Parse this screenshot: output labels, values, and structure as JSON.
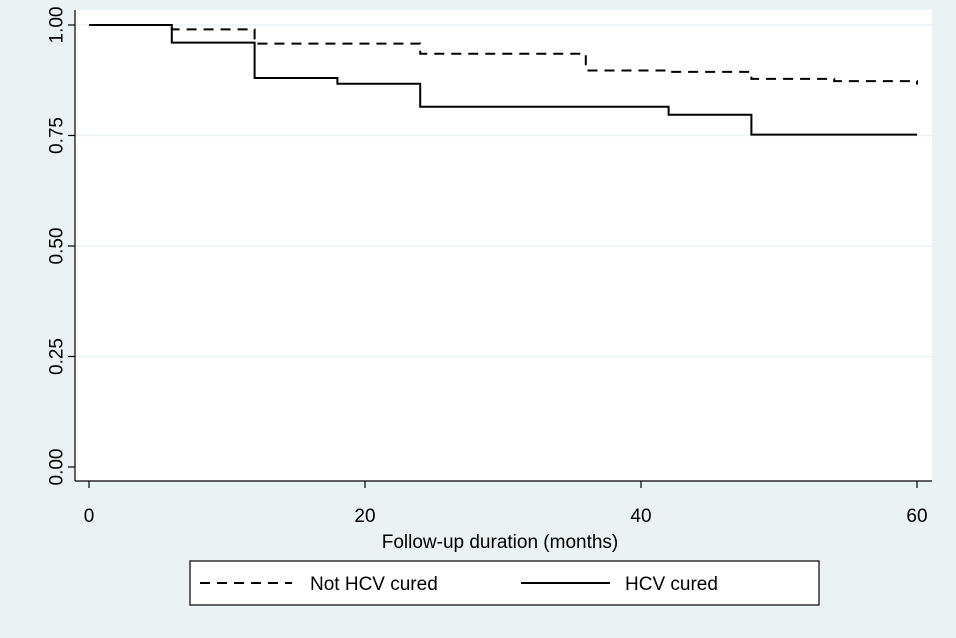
{
  "chart_data": {
    "type": "line",
    "title": "",
    "xlabel": "Follow-up duration (months)",
    "ylabel": "",
    "xlim": [
      0,
      60
    ],
    "ylim": [
      0,
      1
    ],
    "x_ticks": [
      0,
      20,
      40,
      60
    ],
    "x_tick_labels": [
      "0",
      "20",
      "40",
      "60"
    ],
    "y_ticks": [
      0,
      0.25,
      0.5,
      0.75,
      1
    ],
    "y_tick_labels": [
      "0.00",
      "0.25",
      "0.50",
      "0.75",
      "1.00"
    ],
    "grid": "horizontal",
    "legend_position": "bottom",
    "series": [
      {
        "name": "Not HCV cured",
        "line_style": "dashed",
        "color": "#000000",
        "x": [
          0,
          6,
          12,
          24,
          36,
          42,
          48,
          54,
          60
        ],
        "y": [
          1.0,
          0.99,
          0.958,
          0.935,
          0.897,
          0.894,
          0.878,
          0.873,
          0.865
        ]
      },
      {
        "name": "HCV cured",
        "line_style": "solid",
        "color": "#000000",
        "x": [
          0,
          6,
          12,
          18,
          24,
          42,
          48,
          60
        ],
        "y": [
          1.0,
          0.96,
          0.88,
          0.867,
          0.815,
          0.797,
          0.752,
          0.752
        ]
      }
    ]
  },
  "colors": {
    "background": "#eaf2f3",
    "plot_area": "#ffffff",
    "gridline": "#eaf2f3",
    "line": "#000000"
  }
}
